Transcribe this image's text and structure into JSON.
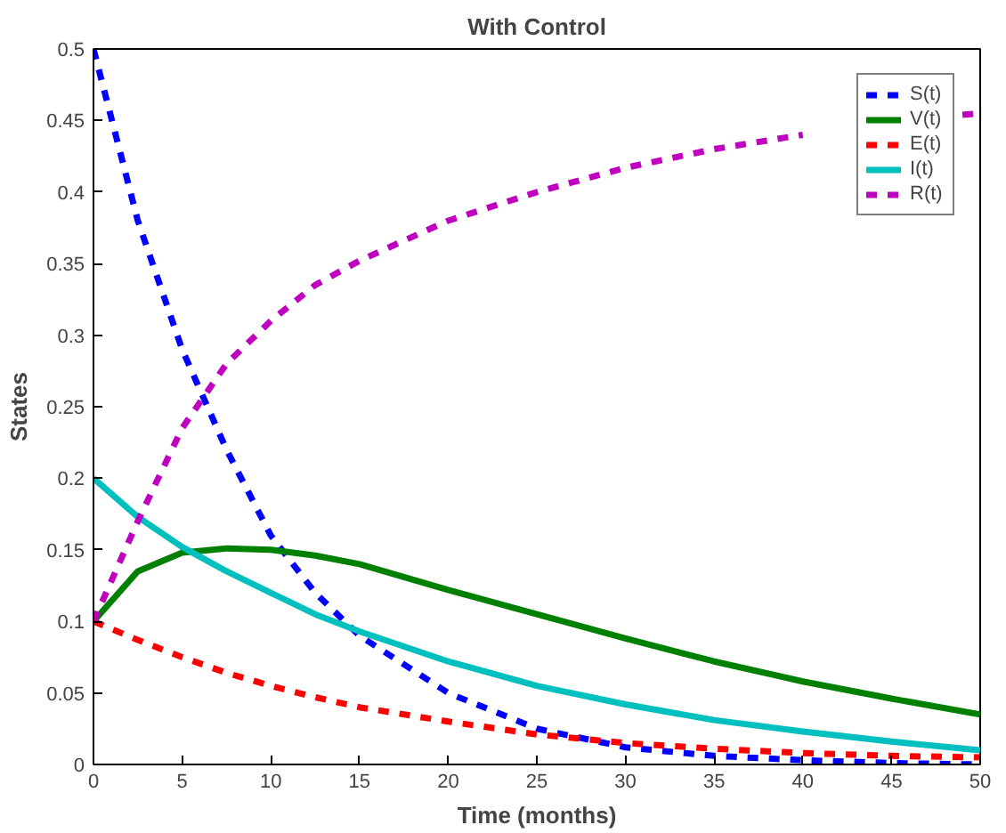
{
  "chart_data": {
    "type": "line",
    "title": "With Control",
    "xlabel": "Time (months)",
    "ylabel": "States",
    "x": [
      0,
      2.5,
      5,
      7.5,
      10,
      12.5,
      15,
      20,
      25,
      30,
      35,
      40,
      45,
      50
    ],
    "series": [
      {
        "name": "S(t)",
        "color": "#0000ff",
        "line_style": "dashed",
        "values": [
          0.5,
          0.38,
          0.29,
          0.22,
          0.16,
          0.12,
          0.09,
          0.05,
          0.025,
          0.012,
          0.006,
          0.003,
          0.001,
          0.0
        ]
      },
      {
        "name": "V(t)",
        "color": "#008000",
        "line_style": "solid",
        "values": [
          0.1,
          0.135,
          0.148,
          0.151,
          0.15,
          0.146,
          0.14,
          0.122,
          0.105,
          0.088,
          0.072,
          0.058,
          0.046,
          0.035
        ]
      },
      {
        "name": "E(t)",
        "color": "#ff0000",
        "line_style": "dashed",
        "values": [
          0.1,
          0.087,
          0.075,
          0.064,
          0.055,
          0.047,
          0.04,
          0.03,
          0.021,
          0.015,
          0.011,
          0.008,
          0.006,
          0.005
        ]
      },
      {
        "name": "I(t)",
        "color": "#00bfbf",
        "line_style": "solid",
        "values": [
          0.2,
          0.173,
          0.152,
          0.135,
          0.12,
          0.105,
          0.093,
          0.072,
          0.055,
          0.042,
          0.031,
          0.023,
          0.016,
          0.01
        ]
      },
      {
        "name": "R(t)",
        "color": "#bf00bf",
        "line_style": "dashed",
        "x": [
          0,
          2.5,
          5,
          7.5,
          10,
          12.5,
          15,
          20,
          25,
          30,
          35,
          40,
          45,
          49,
          50
        ],
        "values": [
          0.1,
          0.17,
          0.235,
          0.28,
          0.31,
          0.335,
          0.352,
          0.38,
          0.4,
          0.417,
          0.43,
          0.44,
          null,
          0.454,
          0.455
        ]
      }
    ],
    "xlim": [
      0,
      50
    ],
    "xticks": [
      0,
      5,
      10,
      15,
      20,
      25,
      30,
      35,
      40,
      45,
      50
    ],
    "ylim": [
      0,
      0.5
    ],
    "yticks": [
      0,
      0.05,
      0.1,
      0.15,
      0.2,
      0.25,
      0.3,
      0.35,
      0.4,
      0.45,
      0.5
    ],
    "grid": false,
    "legend": "top right"
  }
}
